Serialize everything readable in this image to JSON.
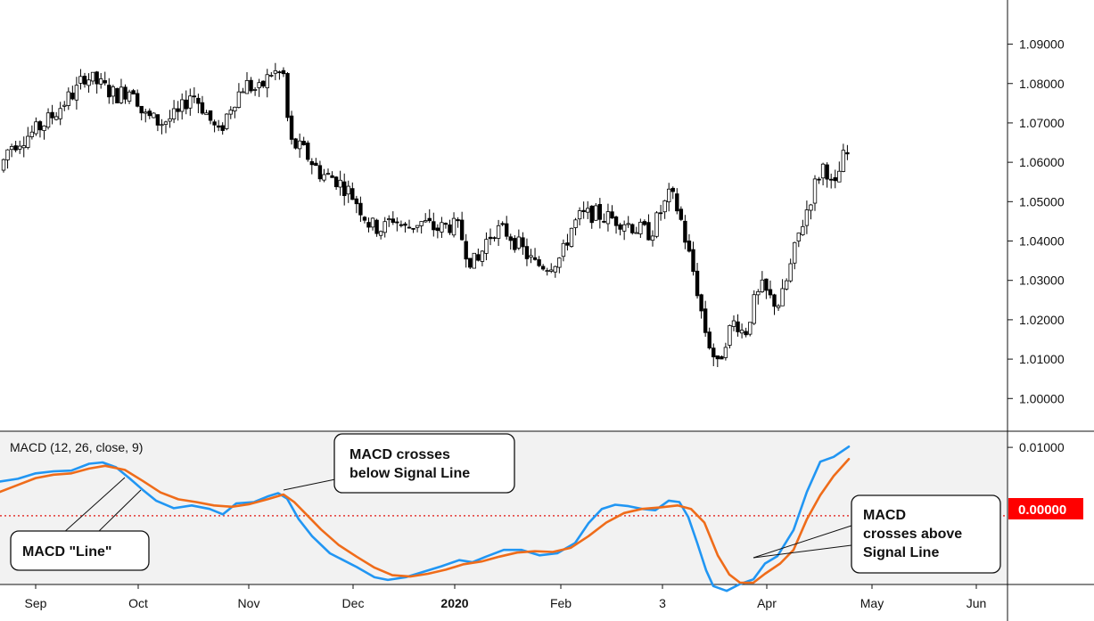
{
  "chart_data": [
    {
      "type": "candlestick",
      "title": "",
      "ylim": [
        0.9935,
        1.0985
      ],
      "y_ticks": [
        "1.09000",
        "1.08000",
        "1.07000",
        "1.06000",
        "1.05000",
        "1.04000",
        "1.03000",
        "1.02000",
        "1.01000",
        "1.00000"
      ],
      "y_tick_values": [
        1.09,
        1.08,
        1.07,
        1.06,
        1.05,
        1.04,
        1.03,
        1.02,
        1.01,
        1.0
      ],
      "x_labels": [
        "Sep",
        "Oct",
        "Nov",
        "Dec",
        "2020",
        "Feb",
        "3",
        "Apr",
        "May",
        "Jun"
      ],
      "path_anchors": [
        [
          0,
          1.058
        ],
        [
          10,
          1.064
        ],
        [
          25,
          1.066
        ],
        [
          40,
          1.068
        ],
        [
          60,
          1.072
        ],
        [
          75,
          1.076
        ],
        [
          85,
          1.078
        ],
        [
          95,
          1.082
        ],
        [
          110,
          1.08
        ],
        [
          130,
          1.077
        ],
        [
          150,
          1.079
        ],
        [
          160,
          1.072
        ],
        [
          180,
          1.07
        ],
        [
          200,
          1.072
        ],
        [
          215,
          1.078
        ],
        [
          230,
          1.073
        ],
        [
          245,
          1.067
        ],
        [
          260,
          1.075
        ],
        [
          275,
          1.08
        ],
        [
          290,
          1.078
        ],
        [
          305,
          1.083
        ],
        [
          318,
          1.082
        ],
        [
          325,
          1.065
        ],
        [
          340,
          1.063
        ],
        [
          360,
          1.057
        ],
        [
          375,
          1.056
        ],
        [
          390,
          1.053
        ],
        [
          400,
          1.05
        ],
        [
          415,
          1.044
        ],
        [
          430,
          1.043
        ],
        [
          440,
          1.046
        ],
        [
          455,
          1.043
        ],
        [
          470,
          1.045
        ],
        [
          490,
          1.043
        ],
        [
          505,
          1.044
        ],
        [
          515,
          1.043
        ],
        [
          525,
          1.036
        ],
        [
          535,
          1.034
        ],
        [
          545,
          1.04
        ],
        [
          555,
          1.043
        ],
        [
          570,
          1.042
        ],
        [
          585,
          1.038
        ],
        [
          600,
          1.034
        ],
        [
          615,
          1.034
        ],
        [
          630,
          1.036
        ],
        [
          640,
          1.043
        ],
        [
          650,
          1.046
        ],
        [
          665,
          1.047
        ],
        [
          680,
          1.046
        ],
        [
          700,
          1.045
        ],
        [
          715,
          1.043
        ],
        [
          730,
          1.042
        ],
        [
          740,
          1.047
        ],
        [
          752,
          1.052
        ],
        [
          762,
          1.047
        ],
        [
          770,
          1.039
        ],
        [
          780,
          1.03
        ],
        [
          790,
          1.018
        ],
        [
          797,
          1.013
        ],
        [
          805,
          1.008
        ],
        [
          815,
          1.016
        ],
        [
          825,
          1.02
        ],
        [
          835,
          1.016
        ],
        [
          845,
          1.024
        ],
        [
          855,
          1.028
        ],
        [
          865,
          1.025
        ],
        [
          875,
          1.024
        ],
        [
          885,
          1.032
        ],
        [
          895,
          1.041
        ],
        [
          905,
          1.048
        ],
        [
          915,
          1.055
        ],
        [
          925,
          1.06
        ],
        [
          935,
          1.052
        ],
        [
          945,
          1.061
        ],
        [
          952,
          1.062
        ]
      ]
    },
    {
      "type": "line",
      "title": "MACD (12, 26, close, 9)",
      "ylim": [
        -0.0098,
        0.0121
      ],
      "y_ticks": [
        "0.01000"
      ],
      "y_tick_values": [
        0.01
      ],
      "zero_value": 0.0,
      "zero_label": "0.00000",
      "series": [
        {
          "color": "#2196f3",
          "points": [
            [
              0,
              0.005
            ],
            [
              20,
              0.0054
            ],
            [
              40,
              0.0062
            ],
            [
              60,
              0.0065
            ],
            [
              80,
              0.0066
            ],
            [
              100,
              0.0076
            ],
            [
              115,
              0.0078
            ],
            [
              130,
              0.0071
            ],
            [
              145,
              0.0055
            ],
            [
              160,
              0.0038
            ],
            [
              175,
              0.0022
            ],
            [
              195,
              0.0011
            ],
            [
              215,
              0.0015
            ],
            [
              235,
              0.001
            ],
            [
              250,
              0.0002
            ],
            [
              265,
              0.0018
            ],
            [
              285,
              0.002
            ],
            [
              300,
              0.0028
            ],
            [
              312,
              0.0033
            ],
            [
              322,
              0.0025
            ],
            [
              335,
              -0.0005
            ],
            [
              350,
              -0.003
            ],
            [
              370,
              -0.0055
            ],
            [
              400,
              -0.0075
            ],
            [
              420,
              -0.009
            ],
            [
              435,
              -0.0094
            ],
            [
              455,
              -0.009
            ],
            [
              475,
              -0.0082
            ],
            [
              495,
              -0.0074
            ],
            [
              515,
              -0.0065
            ],
            [
              530,
              -0.0068
            ],
            [
              545,
              -0.006
            ],
            [
              565,
              -0.005
            ],
            [
              585,
              -0.005
            ],
            [
              605,
              -0.0058
            ],
            [
              625,
              -0.0055
            ],
            [
              645,
              -0.004
            ],
            [
              660,
              -0.0011
            ],
            [
              675,
              0.001
            ],
            [
              690,
              0.0016
            ],
            [
              705,
              0.0014
            ],
            [
              720,
              0.001
            ],
            [
              735,
              0.0008
            ],
            [
              750,
              0.0022
            ],
            [
              762,
              0.002
            ],
            [
              772,
              -0.0002
            ],
            [
              782,
              -0.004
            ],
            [
              792,
              -0.008
            ],
            [
              800,
              -0.0103
            ],
            [
              815,
              -0.011
            ],
            [
              830,
              -0.01
            ],
            [
              845,
              -0.0093
            ],
            [
              858,
              -0.007
            ],
            [
              872,
              -0.0059
            ],
            [
              890,
              -0.0021
            ],
            [
              905,
              0.0035
            ],
            [
              920,
              0.0079
            ],
            [
              935,
              0.0086
            ],
            [
              952,
              0.0101
            ]
          ]
        },
        {
          "color": "#ef6c1a",
          "points": [
            [
              0,
              0.0035
            ],
            [
              20,
              0.0045
            ],
            [
              40,
              0.0055
            ],
            [
              60,
              0.006
            ],
            [
              80,
              0.0062
            ],
            [
              100,
              0.0069
            ],
            [
              118,
              0.0073
            ],
            [
              140,
              0.0067
            ],
            [
              160,
              0.0051
            ],
            [
              180,
              0.0034
            ],
            [
              200,
              0.0024
            ],
            [
              220,
              0.002
            ],
            [
              240,
              0.0015
            ],
            [
              260,
              0.0013
            ],
            [
              280,
              0.0017
            ],
            [
              300,
              0.0024
            ],
            [
              318,
              0.0031
            ],
            [
              330,
              0.002
            ],
            [
              345,
              0.0
            ],
            [
              360,
              -0.002
            ],
            [
              380,
              -0.0043
            ],
            [
              400,
              -0.006
            ],
            [
              420,
              -0.0076
            ],
            [
              440,
              -0.0087
            ],
            [
              460,
              -0.0089
            ],
            [
              480,
              -0.0085
            ],
            [
              500,
              -0.0079
            ],
            [
              520,
              -0.0071
            ],
            [
              540,
              -0.0067
            ],
            [
              560,
              -0.006
            ],
            [
              580,
              -0.0054
            ],
            [
              600,
              -0.0052
            ],
            [
              620,
              -0.0053
            ],
            [
              640,
              -0.0047
            ],
            [
              660,
              -0.003
            ],
            [
              680,
              -0.001
            ],
            [
              700,
              0.0004
            ],
            [
              720,
              0.001
            ],
            [
              740,
              0.0012
            ],
            [
              760,
              0.0015
            ],
            [
              775,
              0.001
            ],
            [
              790,
              -0.001
            ],
            [
              805,
              -0.0058
            ],
            [
              818,
              -0.0086
            ],
            [
              830,
              -0.0098
            ],
            [
              845,
              -0.0098
            ],
            [
              858,
              -0.0085
            ],
            [
              875,
              -0.007
            ],
            [
              890,
              -0.005
            ],
            [
              905,
              -0.0005
            ],
            [
              920,
              0.003
            ],
            [
              935,
              0.0058
            ],
            [
              952,
              0.0083
            ]
          ]
        }
      ]
    }
  ],
  "annotations": {
    "macd_line": "MACD \"Line\"",
    "cross_below_1": "MACD crosses",
    "cross_below_2": "below Signal Line",
    "cross_above_1": "MACD",
    "cross_above_2": "crosses above",
    "cross_above_3": "Signal Line"
  },
  "colors": {
    "up_candle": "#ffffff",
    "down_candle": "#000000",
    "zero_line": "#e53935",
    "zero_label_bg": "#ff0000"
  }
}
